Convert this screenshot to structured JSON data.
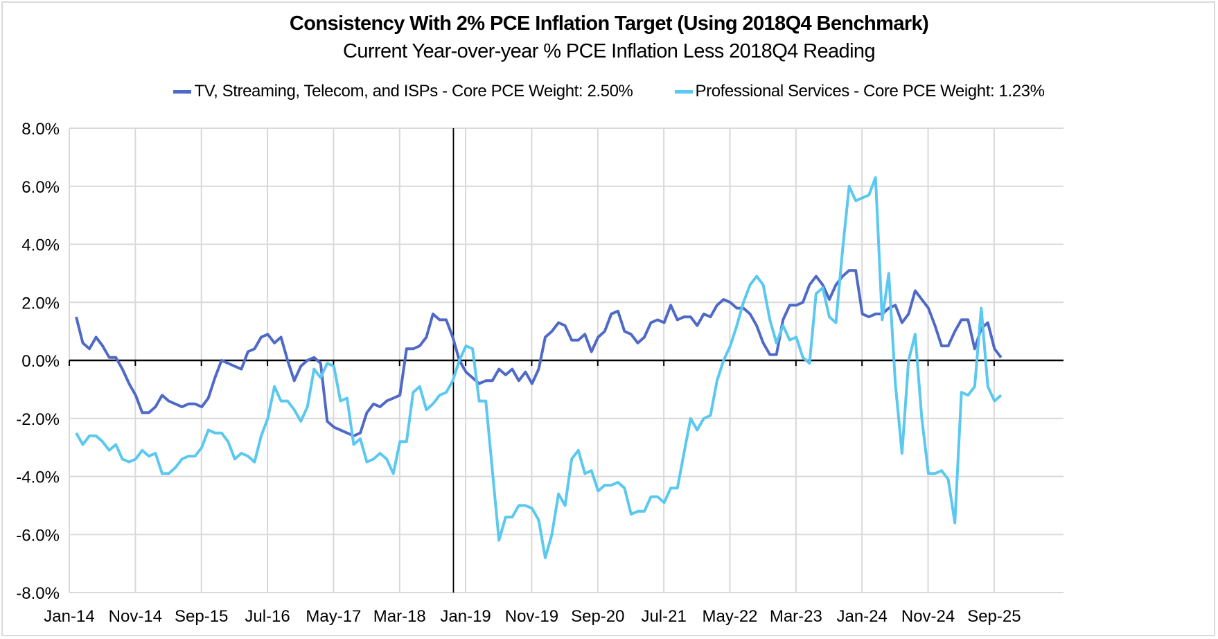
{
  "chart_data": {
    "type": "line",
    "title": "Consistency With 2% PCE Inflation Target (Using 2018Q4 Benchmark)",
    "subtitle": "Current Year-over-year % PCE Inflation Less 2018Q4 Reading",
    "xlabel": "",
    "ylabel": "",
    "ylim": [
      -8.0,
      8.0
    ],
    "yticks": [
      "8.0%",
      "6.0%",
      "4.0%",
      "2.0%",
      "0.0%",
      "-2.0%",
      "-4.0%",
      "-6.0%",
      "-8.0%"
    ],
    "ytick_values": [
      8,
      6,
      4,
      2,
      0,
      -2,
      -4,
      -6,
      -8
    ],
    "xticks": [
      "Jan-14",
      "Nov-14",
      "Sep-15",
      "Jul-16",
      "May-17",
      "Mar-18",
      "Jan-19",
      "Nov-19",
      "Sep-20",
      "Jul-21",
      "May-22",
      "Mar-23",
      "Jan-24",
      "Nov-24",
      "Sep-25"
    ],
    "x_start": "Jan-14",
    "x_end": "Sep-25",
    "frequency": "monthly",
    "grid": true,
    "legend_position": "top",
    "benchmark_marker": "2018Q4",
    "series": [
      {
        "name": "TV, Streaming, Telecom, and ISPs - Core PCE Weight: 2.50%",
        "color": "#4f69c6",
        "values": [
          1.5,
          0.6,
          0.4,
          0.8,
          0.5,
          0.1,
          0.1,
          -0.3,
          -0.8,
          -1.2,
          -1.8,
          -1.8,
          -1.6,
          -1.2,
          -1.4,
          -1.5,
          -1.6,
          -1.5,
          -1.5,
          -1.6,
          -1.3,
          -0.6,
          0.0,
          -0.1,
          -0.2,
          -0.3,
          0.3,
          0.4,
          0.8,
          0.9,
          0.6,
          0.8,
          0.0,
          -0.7,
          -0.2,
          0.0,
          0.1,
          -0.1,
          -2.1,
          -2.3,
          -2.4,
          -2.5,
          -2.6,
          -2.5,
          -1.8,
          -1.5,
          -1.6,
          -1.4,
          -1.3,
          -1.2,
          0.4,
          0.4,
          0.5,
          0.8,
          1.6,
          1.4,
          1.4,
          0.8,
          0.0,
          -0.4,
          -0.6,
          -0.8,
          -0.7,
          -0.7,
          -0.3,
          -0.5,
          -0.3,
          -0.7,
          -0.4,
          -0.8,
          -0.3,
          0.8,
          1.0,
          1.3,
          1.2,
          0.7,
          0.7,
          0.9,
          0.3,
          0.8,
          1.0,
          1.6,
          1.7,
          1.0,
          0.9,
          0.6,
          0.8,
          1.3,
          1.4,
          1.3,
          1.9,
          1.4,
          1.5,
          1.5,
          1.2,
          1.6,
          1.5,
          1.9,
          2.1,
          2.0,
          1.8,
          1.8,
          1.6,
          1.2,
          0.6,
          0.2,
          0.2,
          1.4,
          1.9,
          1.9,
          2.0,
          2.6,
          2.9,
          2.6,
          2.1,
          2.6,
          2.9,
          3.1,
          3.1,
          1.6,
          1.5,
          1.6,
          1.6,
          1.8,
          1.9,
          1.3,
          1.6,
          2.4,
          2.1,
          1.8,
          1.2,
          0.5,
          0.5,
          1.0,
          1.4,
          1.4,
          0.4,
          1.1,
          1.3,
          0.4,
          0.1
        ]
      },
      {
        "name": "Professional Services - Core PCE Weight: 1.23%",
        "color": "#5bc8f0",
        "values": [
          -2.5,
          -2.9,
          -2.6,
          -2.6,
          -2.8,
          -3.1,
          -2.9,
          -3.4,
          -3.5,
          -3.4,
          -3.1,
          -3.3,
          -3.2,
          -3.9,
          -3.9,
          -3.7,
          -3.4,
          -3.3,
          -3.3,
          -3.0,
          -2.4,
          -2.5,
          -2.5,
          -2.8,
          -3.4,
          -3.2,
          -3.3,
          -3.5,
          -2.6,
          -2.0,
          -0.9,
          -1.4,
          -1.4,
          -1.7,
          -2.1,
          -1.6,
          -0.3,
          -0.6,
          -0.1,
          -0.2,
          -1.4,
          -1.3,
          -2.9,
          -2.7,
          -3.5,
          -3.4,
          -3.2,
          -3.4,
          -3.9,
          -2.8,
          -2.8,
          -1.1,
          -0.9,
          -1.7,
          -1.5,
          -1.2,
          -1.1,
          -0.7,
          0.0,
          0.5,
          0.4,
          -1.4,
          -1.4,
          -3.8,
          -6.2,
          -5.4,
          -5.4,
          -5.0,
          -5.0,
          -5.1,
          -5.5,
          -6.8,
          -6.0,
          -4.6,
          -5.0,
          -3.4,
          -3.1,
          -3.9,
          -3.8,
          -4.5,
          -4.3,
          -4.3,
          -4.2,
          -4.4,
          -5.3,
          -5.2,
          -5.2,
          -4.7,
          -4.7,
          -4.9,
          -4.4,
          -4.4,
          -3.2,
          -2.0,
          -2.4,
          -2.0,
          -1.9,
          -0.7,
          0.0,
          0.5,
          1.2,
          2.0,
          2.6,
          2.9,
          2.6,
          1.4,
          0.6,
          1.2,
          0.7,
          0.8,
          0.1,
          -0.1,
          2.3,
          2.5,
          1.5,
          1.3,
          3.8,
          6.0,
          5.5,
          5.6,
          5.7,
          6.3,
          1.4,
          3.0,
          -0.8,
          -3.2,
          0.0,
          0.9,
          -2.0,
          -3.9,
          -3.9,
          -3.8,
          -4.1,
          -5.6,
          -1.1,
          -1.2,
          -0.9,
          1.8,
          -0.9,
          -1.4,
          -1.2
        ]
      }
    ]
  }
}
